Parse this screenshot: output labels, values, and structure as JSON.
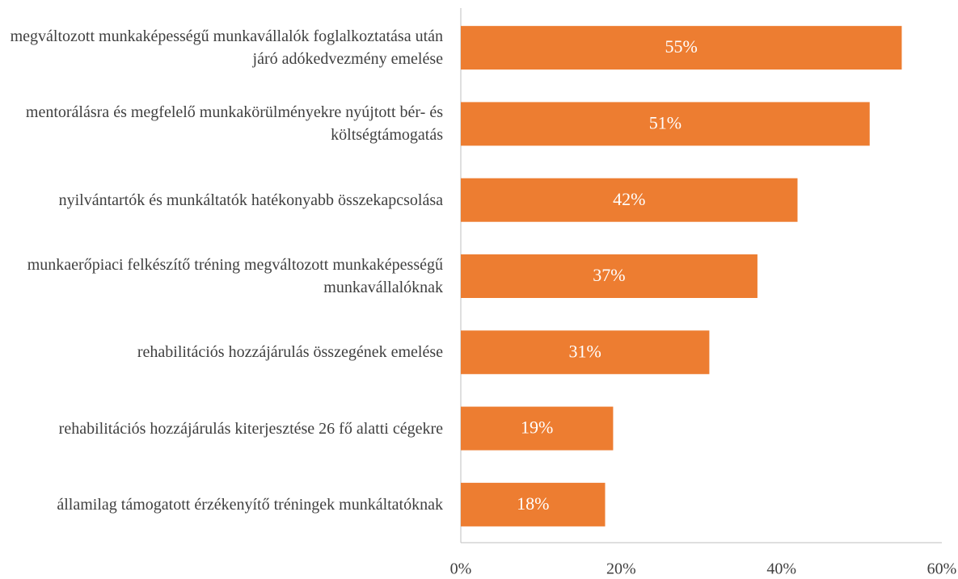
{
  "chart_data": {
    "type": "bar",
    "orientation": "horizontal",
    "categories": [
      "megváltozott munkaképességű munkavállalók foglalkoztatása után járó adókedvezmény emelése",
      "mentorálásra és megfelelő munkakörülményekre nyújtott bér- és költségtámogatás",
      "nyilvántartók és munkáltatók hatékonyabb összekapcsolása",
      "munkaerőpiaci felkészítő tréning megváltozott munkaképességű munkavállalóknak",
      "rehabilitációs hozzájárulás összegének emelése",
      "rehabilitációs hozzájárulás kiterjesztése 26 fő alatti cégekre",
      "államilag támogatott érzékenyítő tréningek munkáltatóknak"
    ],
    "values": [
      55,
      51,
      42,
      37,
      31,
      19,
      18
    ],
    "value_labels": [
      "55%",
      "51%",
      "42%",
      "37%",
      "31%",
      "19%",
      "18%"
    ],
    "color": "#ed7d31",
    "xlim": [
      0,
      60
    ],
    "xticks": [
      {
        "value": 0,
        "label": "0%"
      },
      {
        "value": 20,
        "label": "20%"
      },
      {
        "value": 40,
        "label": "40%"
      },
      {
        "value": 60,
        "label": "60%"
      }
    ],
    "grid": false
  }
}
